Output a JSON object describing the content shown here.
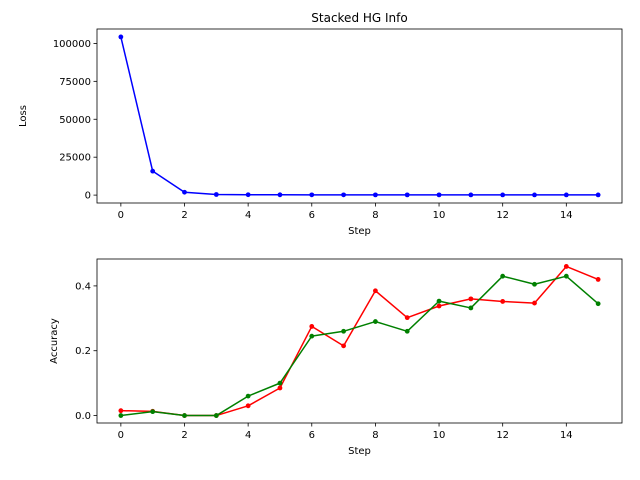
{
  "chart_data": [
    {
      "type": "line",
      "title": "Stacked HG Info",
      "xlabel": "Step",
      "ylabel": "Loss",
      "xlim": [
        -0.75,
        15.75
      ],
      "ylim": [
        -5200,
        109500
      ],
      "xticks": [
        0,
        2,
        4,
        6,
        8,
        10,
        12,
        14
      ],
      "yticks": [
        0,
        25000,
        50000,
        75000,
        100000
      ],
      "grid": false,
      "x": [
        0,
        1,
        2,
        3,
        4,
        5,
        6,
        7,
        8,
        9,
        10,
        11,
        12,
        13,
        14,
        15
      ],
      "series": [
        {
          "color": "#0000ff",
          "marker": "dot",
          "values": [
            104300,
            15800,
            1900,
            400,
            250,
            200,
            180,
            170,
            160,
            150,
            150,
            140,
            140,
            140,
            130,
            130
          ]
        }
      ]
    },
    {
      "type": "line",
      "title": "",
      "xlabel": "Step",
      "ylabel": "Accuracy",
      "xlim": [
        -0.75,
        15.75
      ],
      "ylim": [
        -0.023,
        0.483
      ],
      "xticks": [
        0,
        2,
        4,
        6,
        8,
        10,
        12,
        14
      ],
      "yticks": [
        0.0,
        0.2,
        0.4
      ],
      "ytick_labels": [
        "0.0",
        "0.2",
        "0.4"
      ],
      "grid": false,
      "x": [
        0,
        1,
        2,
        3,
        4,
        5,
        6,
        7,
        8,
        9,
        10,
        11,
        12,
        13,
        14,
        15
      ],
      "series": [
        {
          "color": "#ff0000",
          "marker": "dot",
          "values": [
            0.015,
            0.013,
            0.0,
            0.0,
            0.03,
            0.085,
            0.275,
            0.215,
            0.385,
            0.302,
            0.338,
            0.36,
            0.352,
            0.347,
            0.46,
            0.42
          ]
        },
        {
          "color": "#008000",
          "marker": "dot",
          "values": [
            0.0,
            0.012,
            0.0,
            0.0,
            0.06,
            0.1,
            0.245,
            0.26,
            0.29,
            0.26,
            0.353,
            0.332,
            0.43,
            0.405,
            0.43,
            0.345
          ]
        }
      ]
    }
  ]
}
